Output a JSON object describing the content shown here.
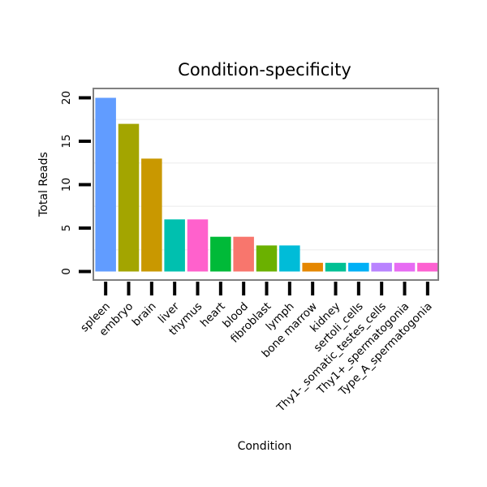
{
  "chart_data": {
    "type": "bar",
    "title": "Condition-specificity",
    "xlabel": "Condition",
    "ylabel": "Total Reads",
    "ylim": [
      0,
      21
    ],
    "yticks": [
      0,
      5,
      10,
      15,
      20
    ],
    "ytick_labels": [
      "0",
      "5",
      "10",
      "15",
      "20"
    ],
    "categories": [
      "spleen",
      "embryo",
      "brain",
      "liver",
      "thymus",
      "heart",
      "blood",
      "fibroblast",
      "lymph",
      "bone marrow",
      "kidney",
      "sertoli_cells",
      "Thy1-_somatic_testes_cells",
      "Thy1+_spermatogonia",
      "Type_A_spermatogonia"
    ],
    "values": [
      20,
      17,
      13,
      6,
      6,
      4,
      4,
      3,
      3,
      1,
      1,
      1,
      1,
      1,
      1
    ],
    "colors": [
      "#619CFF",
      "#A3A500",
      "#C99800",
      "#00C0AF",
      "#FF61CC",
      "#00BA38",
      "#F8766D",
      "#6BB100",
      "#00BCD8",
      "#E58700",
      "#00C094",
      "#00B0F6",
      "#B983FF",
      "#E76BF3",
      "#FD61D1"
    ],
    "grid": true,
    "legend": "none"
  }
}
